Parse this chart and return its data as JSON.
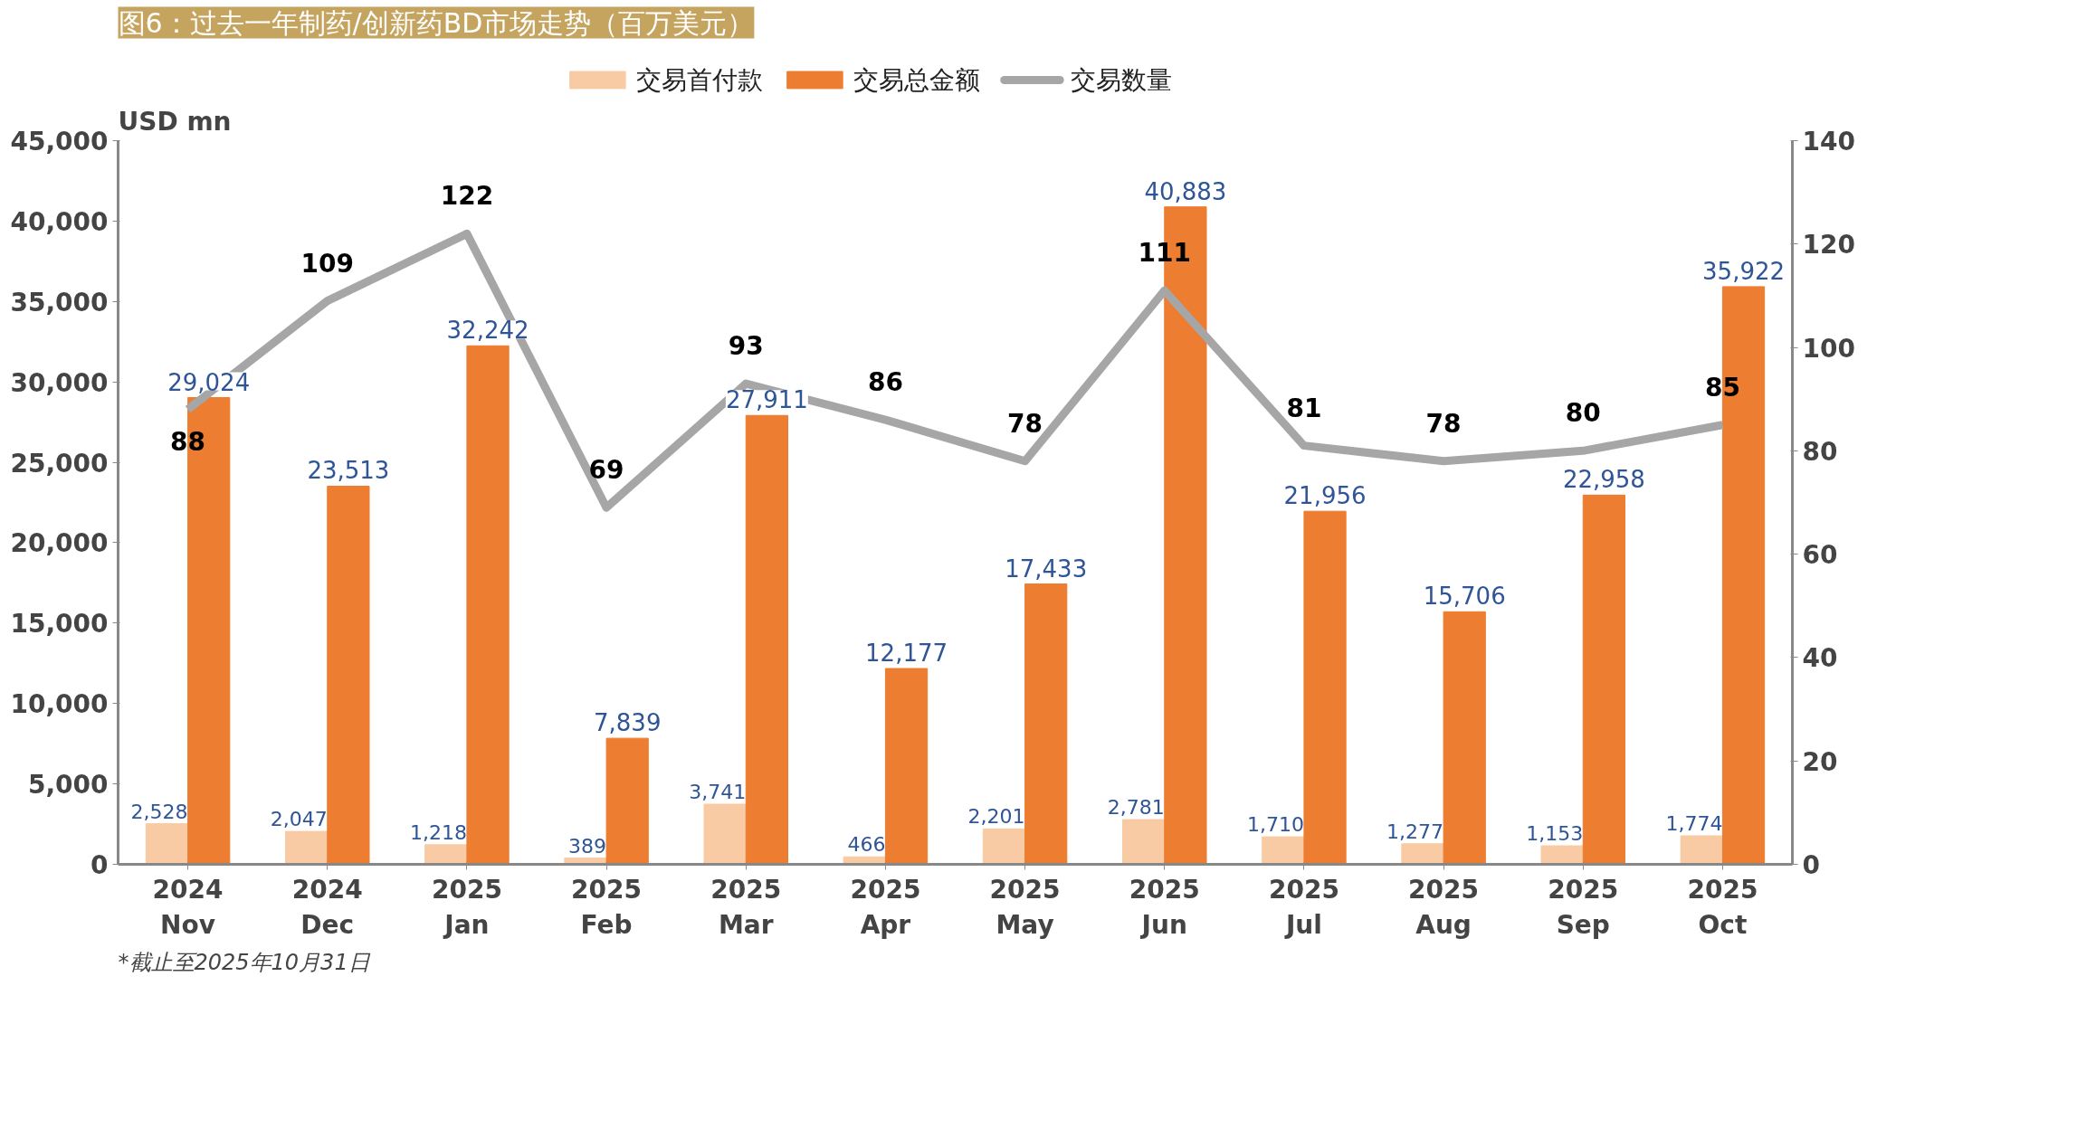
{
  "chart_data": {
    "type": "bar",
    "title": "图6：过去一年制药/创新药BD市场走势（百万美元）",
    "ylabel": "USD mn",
    "categories": [
      "2024\nNov",
      "2024\nDec",
      "2025\nJan",
      "2025\nFeb",
      "2025\nMar",
      "2025\nApr",
      "2025\nMay",
      "2025\nJun",
      "2025\nJul",
      "2025\nAug",
      "2025\nSep",
      "2025\nOct"
    ],
    "series": [
      {
        "name": "交易首付款",
        "color": "#f8cba5",
        "values": [
          2528,
          2047,
          1218,
          389,
          3741,
          466,
          2201,
          2781,
          1710,
          1277,
          1153,
          1774
        ],
        "value_labels": [
          "2,528",
          "2,047",
          "1,218",
          "389",
          "3,741",
          "466",
          "2,201",
          "2,781",
          "1,710",
          "1,277",
          "1,153",
          "1,774"
        ]
      },
      {
        "name": "交易总金额",
        "color": "#ed7d31",
        "values": [
          29024,
          23513,
          32242,
          7839,
          27911,
          12177,
          17433,
          40883,
          21956,
          15706,
          22958,
          35922
        ],
        "value_labels": [
          "29,024",
          "23,513",
          "32,242",
          "7,839",
          "27,911",
          "12,177",
          "17,433",
          "40,883",
          "21,956",
          "15,706",
          "22,958",
          "35,922"
        ]
      },
      {
        "name": "交易数量",
        "type": "line",
        "axis": "y2",
        "color": "#a6a6a6",
        "values": [
          88,
          109,
          122,
          69,
          93,
          86,
          78,
          111,
          81,
          78,
          80,
          85
        ],
        "value_labels": [
          "88",
          "109",
          "122",
          "69",
          "93",
          "86",
          "78",
          "111",
          "81",
          "78",
          "80",
          "85"
        ]
      }
    ],
    "ylim": [
      0,
      45000
    ],
    "yticks": [
      0,
      {
        "value": 5000,
        "label": "5,000"
      },
      {
        "value": 10000,
        "label": "10,000"
      },
      {
        "value": 15000,
        "label": "15,000"
      },
      {
        "value": 20000,
        "label": "20,000"
      },
      {
        "value": 25000,
        "label": "25,000"
      },
      {
        "value": 30000,
        "label": "30,000"
      },
      {
        "value": 35000,
        "label": "35,000"
      },
      {
        "value": 40000,
        "label": "40,000"
      },
      {
        "value": 45000,
        "label": "45,000"
      }
    ],
    "y2lim": [
      0,
      140
    ],
    "y2ticks": [
      0,
      20,
      40,
      60,
      80,
      100,
      120,
      140
    ],
    "legend": "top",
    "annotations": [
      "*截止至2025年10月31日"
    ]
  }
}
